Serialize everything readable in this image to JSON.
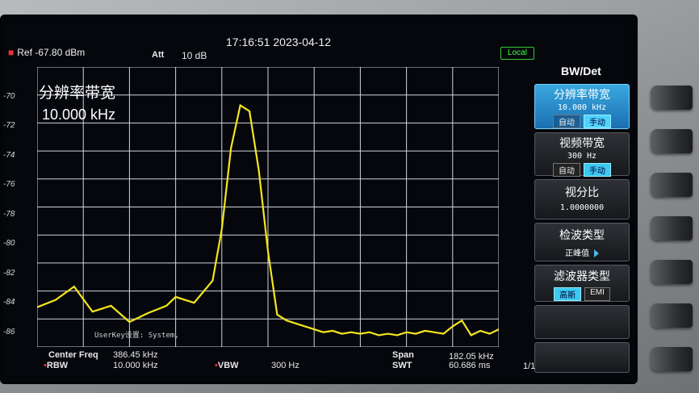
{
  "header": {
    "datetime": "17:16:51 2023-04-12",
    "ref": "Ref  -67.80 dBm",
    "att_label": "Att",
    "att_value": "10 dB",
    "remote_status": "Local"
  },
  "overlay": {
    "title": "分辨率带宽",
    "value": "10.000 kHz",
    "userkey": "UserKey设置:  System,"
  },
  "y_ticks": [
    "-70",
    "-72",
    "-74",
    "-76",
    "-78",
    "-80",
    "-82",
    "-84",
    "-86"
  ],
  "trace_color": "#f5e61e",
  "footer": {
    "center_freq_label": "Center Freq",
    "center_freq_value": "386.45 kHz",
    "rbw_label": "RBW",
    "rbw_value": "10.000 kHz",
    "vbw_label": "VBW",
    "vbw_value": "300 Hz",
    "span_label": "Span",
    "span_value": "182.05 kHz",
    "swt_label": "SWT",
    "swt_value": "60.686 ms",
    "page": "1/1"
  },
  "menu": {
    "title": "BW/Det",
    "items": [
      {
        "title": "分辨率带宽",
        "value": "10.000 kHz",
        "opt_auto": "自动",
        "opt_manual": "手动"
      },
      {
        "title": "视频带宽",
        "value": "300 Hz",
        "opt_auto": "自动",
        "opt_manual": "手动"
      },
      {
        "title": "视分比",
        "value": "1.0000000"
      },
      {
        "title": "检波类型",
        "value": "正峰值"
      },
      {
        "title": "滤波器类型",
        "opt_gauss": "高斯",
        "opt_emi": "EMI"
      }
    ]
  },
  "chart_data": {
    "type": "line",
    "title": "",
    "xlabel": "",
    "ylabel": "",
    "ylim": [
      -87,
      -68
    ],
    "x": [
      0,
      4,
      8,
      12,
      16,
      20,
      24,
      28,
      30,
      34,
      38,
      40,
      42,
      44,
      46,
      48,
      50,
      52,
      54,
      56,
      58,
      60,
      62,
      64,
      66,
      68,
      70,
      72,
      74,
      76,
      78,
      80,
      82,
      84,
      86,
      88,
      90,
      92,
      94,
      96,
      98,
      100
    ],
    "series": [
      {
        "values": [
          -84.3,
          -83.8,
          -82.9,
          -84.6,
          -84.2,
          -85.3,
          -84.7,
          -84.2,
          -83.6,
          -84.0,
          -82.5,
          -79.0,
          -73.5,
          -70.6,
          -71.0,
          -75.0,
          -80.5,
          -84.8,
          -85.2,
          -85.4,
          -85.6,
          -85.8,
          -86.0,
          -85.9,
          -86.1,
          -86.0,
          -86.1,
          -86.0,
          -86.2,
          -86.1,
          -86.2,
          -86.0,
          -86.1,
          -85.9,
          -86.0,
          -86.1,
          -85.6,
          -85.2,
          -86.2,
          -85.9,
          -86.1,
          -85.8
        ]
      }
    ]
  }
}
